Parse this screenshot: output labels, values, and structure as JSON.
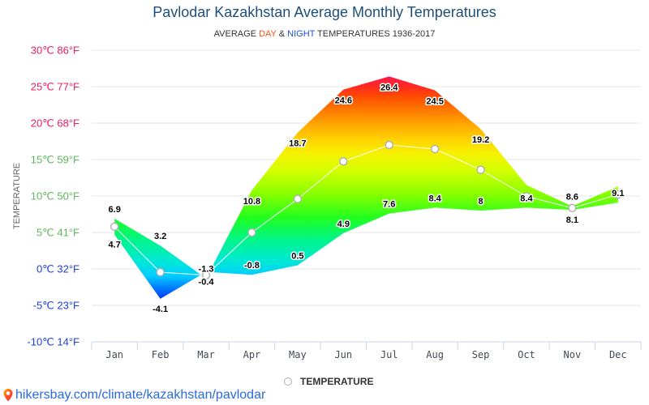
{
  "header": {
    "title": "Pavlodar Kazakhstan Average Monthly Temperatures",
    "subtitle": {
      "prefix": "AVERAGE ",
      "day": "DAY",
      "amp": " & ",
      "night": "NIGHT",
      "suffix": " TEMPERATURES 1936-2017"
    }
  },
  "colors": {
    "title": "#1d4f7c",
    "day": "#f4511e",
    "night": "#1e4fd8",
    "link": "#2a6ae0",
    "mean_line": "#ffffff",
    "marker_stroke": "#b0b0b0"
  },
  "legend": {
    "items": [
      {
        "label": "TEMPERATURE",
        "icon": "circle-marker-icon"
      }
    ]
  },
  "footer": {
    "icon": "map-pin-icon",
    "link_text": "hikersbay.com/climate/kazakhstan/pavlodar"
  },
  "chart_data": {
    "type": "area",
    "title": "Pavlodar Kazakhstan Average Monthly Temperatures",
    "subtitle": "AVERAGE DAY & NIGHT TEMPERATURES 1936-2017",
    "xlabel": "",
    "ylabel": "TEMPERATURE",
    "ylim": [
      -10,
      30
    ],
    "grid": true,
    "legend": "bottom-center",
    "categories": [
      "Jan",
      "Feb",
      "Mar",
      "Apr",
      "May",
      "Jun",
      "Jul",
      "Aug",
      "Sep",
      "Oct",
      "Nov",
      "Dec"
    ],
    "yticks": [
      {
        "value": 30,
        "label": "30℃ 86°F",
        "color": "#e91e63"
      },
      {
        "value": 25,
        "label": "25℃ 77°F",
        "color": "#e91e63"
      },
      {
        "value": 20,
        "label": "20℃ 68°F",
        "color": "#e91e63"
      },
      {
        "value": 15,
        "label": "15℃ 59°F",
        "color": "#5cb85c"
      },
      {
        "value": 10,
        "label": "10℃ 50°F",
        "color": "#5cb85c"
      },
      {
        "value": 5,
        "label": "5℃ 41°F",
        "color": "#5cb85c"
      },
      {
        "value": 0,
        "label": "0℃ 32°F",
        "color": "#1e40d8"
      },
      {
        "value": -5,
        "label": "-5℃ 23°F",
        "color": "#1e40d8"
      },
      {
        "value": -10,
        "label": "-10℃ 14°F",
        "color": "#1e40d8"
      }
    ],
    "series": [
      {
        "name": "Day",
        "values": [
          6.9,
          3.2,
          -1.3,
          10.8,
          18.7,
          24.6,
          26.4,
          24.5,
          19.2,
          11.5,
          8.6,
          11.3
        ],
        "labels": [
          "6.9",
          "3.2",
          "-1.3",
          "10.8",
          "18.7",
          "24.6",
          "26.4",
          "24.5",
          "19.2",
          null,
          "8.6",
          null
        ]
      },
      {
        "name": "Night",
        "values": [
          4.7,
          -4.1,
          -0.4,
          -0.8,
          0.5,
          4.9,
          7.6,
          8.4,
          8,
          8.4,
          8.1,
          9.1
        ],
        "labels": [
          "4.7",
          "-4.1",
          "-0.4",
          "-0.8",
          "0.5",
          "4.9",
          "7.6",
          "8.4",
          "8",
          "8.4",
          "8.1",
          "9.1"
        ]
      },
      {
        "name": "TEMPERATURE",
        "values": [
          5.8,
          -0.45,
          -0.85,
          5,
          9.6,
          14.75,
          17,
          16.45,
          13.6,
          9.95,
          8.35,
          10.2
        ]
      }
    ],
    "color_scale": [
      {
        "temp": 27,
        "color": "#ff1060"
      },
      {
        "temp": 25,
        "color": "#ff2a20"
      },
      {
        "temp": 23.5,
        "color": "#ff5000"
      },
      {
        "temp": 21,
        "color": "#ff8c00"
      },
      {
        "temp": 18.5,
        "color": "#ffc400"
      },
      {
        "temp": 16,
        "color": "#f8f000"
      },
      {
        "temp": 13.5,
        "color": "#d4ff00"
      },
      {
        "temp": 10,
        "color": "#80ff00"
      },
      {
        "temp": 7,
        "color": "#20ff20"
      },
      {
        "temp": 4,
        "color": "#00f58a"
      },
      {
        "temp": 1,
        "color": "#00e8d8"
      },
      {
        "temp": -1,
        "color": "#00ccff"
      },
      {
        "temp": -2.5,
        "color": "#0080ff"
      },
      {
        "temp": -4.5,
        "color": "#0028f0"
      }
    ]
  }
}
